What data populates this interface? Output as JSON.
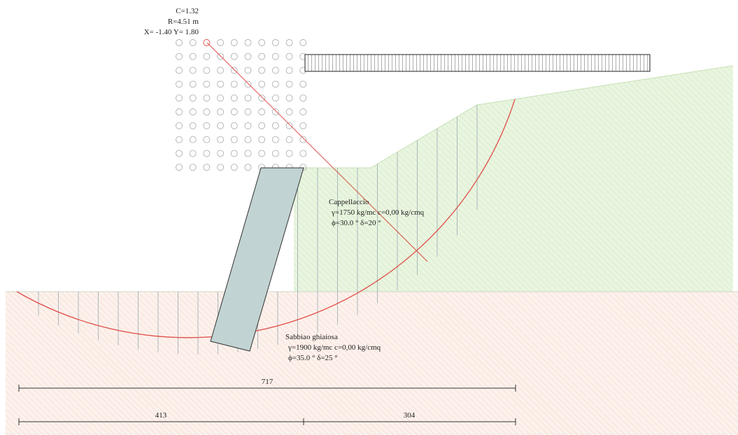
{
  "analysis": {
    "safety_factor": "C=1.32",
    "radius": "R=4.51 m",
    "center": "X= -1.40  Y= 1.80"
  },
  "soils": [
    {
      "name": "Cappellaccio",
      "gamma": "γ=1750 kg/mc c=0,00 kg/cmq",
      "phi_delta": "ϕ=30.0 °  δ=20 °",
      "fill_color": "#e7f4dd",
      "hatch_color": "#bfe0a8"
    },
    {
      "name": "Sabbiao ghiaiosa",
      "gamma": "γ=1900 kg/mc c=0,00 kg/cmq",
      "phi_delta": "ϕ=35.0 °  δ=25 °",
      "fill_color": "#fbeee8",
      "hatch_color": "#f1c9b8"
    }
  ],
  "dimensions": {
    "total": "717",
    "left": "413",
    "right": "304"
  },
  "colors": {
    "slip_surface": "#e0504a",
    "wall": "#c1d3d2",
    "grid_circles": "#b0b0b0",
    "slices": "#9aaab4"
  }
}
